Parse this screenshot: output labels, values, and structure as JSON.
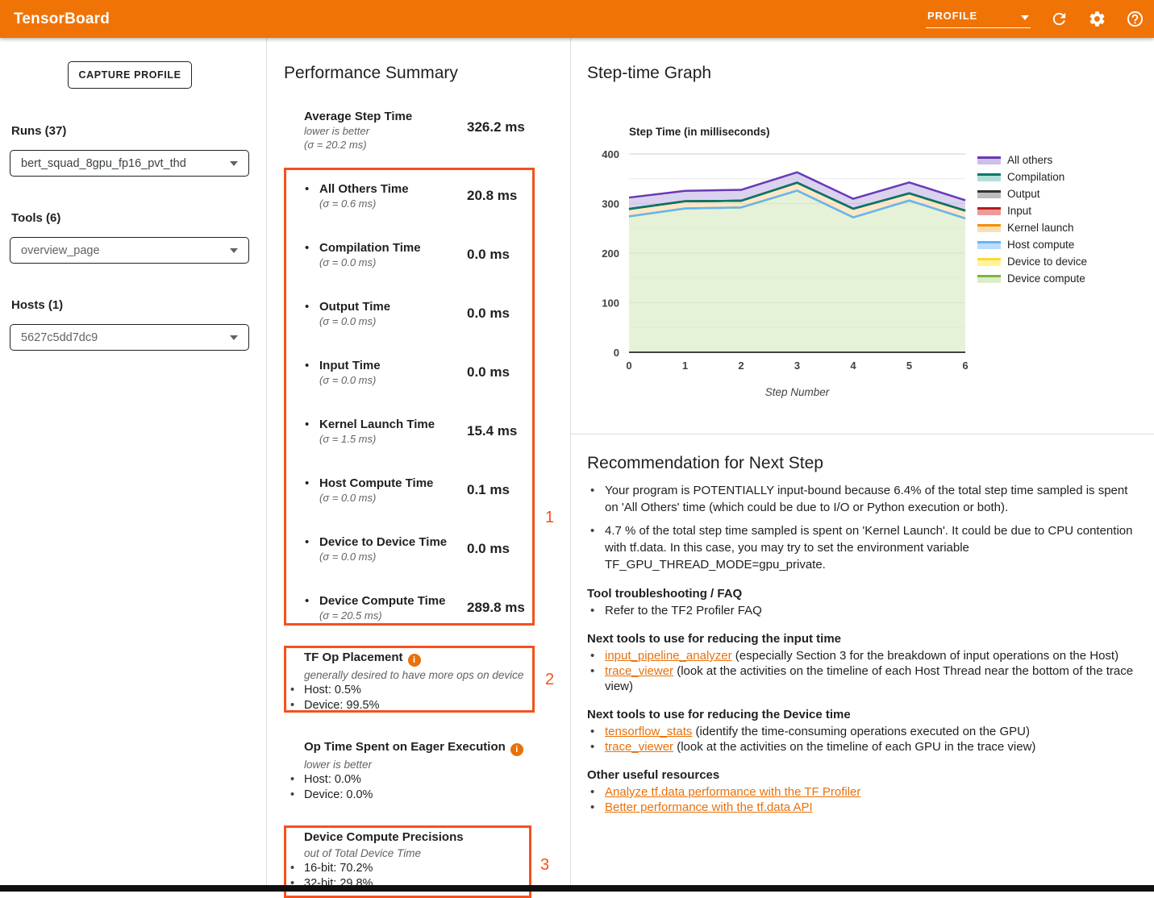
{
  "header": {
    "app_title": "TensorBoard",
    "dashboard_selected": "PROFILE"
  },
  "sidebar": {
    "capture_button": "CAPTURE PROFILE",
    "runs": {
      "label": "Runs (37)",
      "selected": "bert_squad_8gpu_fp16_pvt_thd"
    },
    "tools": {
      "label": "Tools (6)",
      "selected": "overview_page"
    },
    "hosts": {
      "label": "Hosts (1)",
      "selected": "5627c5dd7dc9"
    }
  },
  "performance_summary": {
    "title": "Performance Summary",
    "average": {
      "label": "Average Step Time",
      "note": "lower is better",
      "sigma": "(σ = 20.2 ms)",
      "value": "326.2 ms"
    },
    "metrics": [
      {
        "label": "All Others Time",
        "sigma": "(σ = 0.6 ms)",
        "value": "20.8 ms"
      },
      {
        "label": "Compilation Time",
        "sigma": "(σ = 0.0 ms)",
        "value": "0.0 ms"
      },
      {
        "label": "Output Time",
        "sigma": "(σ = 0.0 ms)",
        "value": "0.0 ms"
      },
      {
        "label": "Input Time",
        "sigma": "(σ = 0.0 ms)",
        "value": "0.0 ms"
      },
      {
        "label": "Kernel Launch Time",
        "sigma": "(σ = 1.5 ms)",
        "value": "15.4 ms"
      },
      {
        "label": "Host Compute Time",
        "sigma": "(σ = 0.0 ms)",
        "value": "0.1 ms"
      },
      {
        "label": "Device to Device Time",
        "sigma": "(σ = 0.0 ms)",
        "value": "0.0 ms"
      },
      {
        "label": "Device Compute Time",
        "sigma": "(σ = 20.5 ms)",
        "value": "289.8 ms"
      }
    ],
    "tf_op_placement": {
      "title": "TF Op Placement",
      "note": "generally desired to have more ops on device",
      "items": [
        "Host: 0.5%",
        "Device: 99.5%"
      ]
    },
    "eager": {
      "title": "Op Time Spent on Eager Execution",
      "note": "lower is better",
      "items": [
        "Host: 0.0%",
        "Device: 0.0%"
      ]
    },
    "precisions": {
      "title": "Device Compute Precisions",
      "note": "out of Total Device Time",
      "items": [
        "16-bit: 70.2%",
        "32-bit: 29.8%"
      ]
    },
    "annotations": [
      "1",
      "2",
      "3"
    ],
    "annotation_color": "#f4511e"
  },
  "step_time_graph": {
    "title": "Step-time Graph"
  },
  "chart_data": {
    "type": "area",
    "stacked": true,
    "title": "Step Time (in milliseconds)",
    "xlabel": "Step Number",
    "x": [
      0,
      1,
      2,
      3,
      4,
      5,
      6
    ],
    "ylim": [
      0,
      400
    ],
    "yticks": [
      0,
      100,
      200,
      300,
      400
    ],
    "grid": true,
    "legend_position": "right",
    "series": [
      {
        "name": "Device compute",
        "stroke": "#7cb342",
        "fill": "#dcedc8",
        "values": [
          274,
          290,
          292,
          326,
          272,
          306,
          270
        ]
      },
      {
        "name": "Device to device",
        "stroke": "#fdd835",
        "fill": "#fff59d",
        "values": [
          0,
          0,
          0,
          0,
          0,
          0,
          0
        ]
      },
      {
        "name": "Host compute",
        "stroke": "#64b5f6",
        "fill": "#bbdefb",
        "values": [
          0.1,
          0.1,
          0.1,
          0.1,
          0.1,
          0.1,
          0.1
        ]
      },
      {
        "name": "Kernel launch",
        "stroke": "#fb8c00",
        "fill": "#fbdfb4",
        "values": [
          15,
          14.5,
          13.5,
          16,
          17.5,
          14.5,
          15.5
        ]
      },
      {
        "name": "Input",
        "stroke": "#b71c1c",
        "fill": "#ef9a9a",
        "values": [
          0,
          0,
          0,
          0,
          0,
          0,
          0
        ]
      },
      {
        "name": "Output",
        "stroke": "#333333",
        "fill": "#bdbdbd",
        "values": [
          0,
          0,
          0,
          0,
          0,
          0,
          0
        ]
      },
      {
        "name": "Compilation",
        "stroke": "#00796b",
        "fill": "#b2dfdb",
        "values": [
          0,
          0,
          0,
          0,
          0,
          0,
          0
        ]
      },
      {
        "name": "All others",
        "stroke": "#673ab7",
        "fill": "#cdc0ea",
        "values": [
          23,
          21,
          22,
          21,
          20,
          22,
          21
        ]
      }
    ],
    "legend_order_top_down": [
      "All others",
      "Compilation",
      "Output",
      "Input",
      "Kernel launch",
      "Host compute",
      "Device to device",
      "Device compute"
    ]
  },
  "recommendation": {
    "title": "Recommendation for Next Step",
    "bullets": [
      "Your program is POTENTIALLY input-bound because 6.4% of the total step time sampled is spent on 'All Others' time (which could be due to I/O or Python execution or both).",
      "4.7 % of the total step time sampled is spent on 'Kernel Launch'. It could be due to CPU contention with tf.data. In this case, you may try to set the environment variable TF_GPU_THREAD_MODE=gpu_private."
    ],
    "sections": [
      {
        "heading": "Tool troubleshooting / FAQ",
        "items": [
          {
            "segments": [
              {
                "t": "Refer to the TF2 Profiler FAQ"
              }
            ]
          }
        ]
      },
      {
        "heading": "Next tools to use for reducing the input time",
        "items": [
          {
            "segments": [
              {
                "t": "input_pipeline_analyzer",
                "link": true
              },
              {
                "t": " (especially Section 3 for the breakdown of input operations on the Host)"
              }
            ]
          },
          {
            "segments": [
              {
                "t": "trace_viewer",
                "link": true
              },
              {
                "t": " (look at the activities on the timeline of each Host Thread near the bottom of the trace view)"
              }
            ]
          }
        ]
      },
      {
        "heading": "Next tools to use for reducing the Device time",
        "items": [
          {
            "segments": [
              {
                "t": "tensorflow_stats",
                "link": true
              },
              {
                "t": " (identify the time-consuming operations executed on the GPU)"
              }
            ]
          },
          {
            "segments": [
              {
                "t": "trace_viewer",
                "link": true
              },
              {
                "t": " (look at the activities on the timeline of each GPU in the trace view)"
              }
            ]
          }
        ]
      },
      {
        "heading": "Other useful resources",
        "items": [
          {
            "segments": [
              {
                "t": "Analyze tf.data performance with the TF Profiler",
                "link": true
              }
            ]
          },
          {
            "segments": [
              {
                "t": "Better performance with the tf.data API",
                "link": true
              }
            ]
          }
        ]
      }
    ]
  }
}
